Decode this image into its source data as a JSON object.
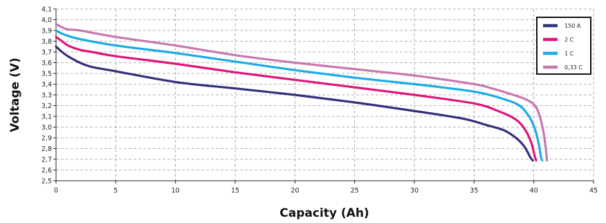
{
  "chart_data": {
    "type": "line",
    "title": "",
    "xlabel": "Capacity (Ah)",
    "ylabel": "Voltage (V)",
    "xlim": [
      0,
      45
    ],
    "ylim": [
      2.5,
      4.1
    ],
    "xticks": [
      0,
      5,
      10,
      15,
      20,
      25,
      30,
      35,
      40,
      45
    ],
    "yticks": [
      2.5,
      2.6,
      2.7,
      2.8,
      2.9,
      3.0,
      3.1,
      3.2,
      3.3,
      3.4,
      3.5,
      3.6,
      3.7,
      3.8,
      3.9,
      4.0,
      4.1
    ],
    "ytick_labels": [
      "2,5",
      "2,6",
      "2,7",
      "2,8",
      "2,9",
      "3,0",
      "3,1",
      "3,2",
      "3,3",
      "3,4",
      "3,5",
      "3,6",
      "3,7",
      "3,8",
      "3,9",
      "4,0",
      "4,1"
    ],
    "grid": true,
    "legend_position": "top-right",
    "series": [
      {
        "name": "150 A",
        "color": "#34307a",
        "points": [
          [
            0,
            3.75
          ],
          [
            0.5,
            3.7
          ],
          [
            1,
            3.66
          ],
          [
            2,
            3.6
          ],
          [
            3,
            3.56
          ],
          [
            5,
            3.52
          ],
          [
            10,
            3.42
          ],
          [
            15,
            3.36
          ],
          [
            20,
            3.3
          ],
          [
            25,
            3.23
          ],
          [
            30,
            3.15
          ],
          [
            34,
            3.08
          ],
          [
            36,
            3.02
          ],
          [
            37.5,
            2.97
          ],
          [
            38.5,
            2.9
          ],
          [
            39.2,
            2.82
          ],
          [
            39.7,
            2.72
          ],
          [
            39.9,
            2.69
          ]
        ]
      },
      {
        "name": "2 C",
        "color": "#e0147a",
        "points": [
          [
            0,
            3.84
          ],
          [
            0.5,
            3.8
          ],
          [
            1,
            3.76
          ],
          [
            2,
            3.72
          ],
          [
            3,
            3.7
          ],
          [
            5,
            3.66
          ],
          [
            10,
            3.59
          ],
          [
            15,
            3.51
          ],
          [
            20,
            3.44
          ],
          [
            25,
            3.37
          ],
          [
            30,
            3.3
          ],
          [
            35,
            3.22
          ],
          [
            37,
            3.15
          ],
          [
            38.5,
            3.07
          ],
          [
            39.3,
            2.97
          ],
          [
            39.8,
            2.85
          ],
          [
            40.1,
            2.72
          ],
          [
            40.2,
            2.69
          ]
        ]
      },
      {
        "name": "1 C",
        "color": "#1aabe6",
        "points": [
          [
            0,
            3.9
          ],
          [
            0.5,
            3.87
          ],
          [
            1,
            3.85
          ],
          [
            2,
            3.82
          ],
          [
            5,
            3.76
          ],
          [
            10,
            3.69
          ],
          [
            15,
            3.61
          ],
          [
            20,
            3.53
          ],
          [
            25,
            3.46
          ],
          [
            30,
            3.4
          ],
          [
            35,
            3.33
          ],
          [
            37.5,
            3.26
          ],
          [
            38.8,
            3.2
          ],
          [
            39.6,
            3.1
          ],
          [
            40.1,
            2.98
          ],
          [
            40.4,
            2.85
          ],
          [
            40.6,
            2.72
          ],
          [
            40.7,
            2.69
          ]
        ]
      },
      {
        "name": "0,33 C",
        "color": "#c678b0",
        "points": [
          [
            0,
            3.96
          ],
          [
            0.5,
            3.93
          ],
          [
            1,
            3.91
          ],
          [
            2,
            3.9
          ],
          [
            5,
            3.84
          ],
          [
            10,
            3.76
          ],
          [
            15,
            3.67
          ],
          [
            20,
            3.6
          ],
          [
            25,
            3.54
          ],
          [
            30,
            3.48
          ],
          [
            35,
            3.4
          ],
          [
            36.5,
            3.36
          ],
          [
            38,
            3.31
          ],
          [
            39.3,
            3.26
          ],
          [
            40.1,
            3.2
          ],
          [
            40.5,
            3.1
          ],
          [
            40.8,
            2.96
          ],
          [
            41,
            2.8
          ],
          [
            41.1,
            2.69
          ]
        ]
      }
    ]
  }
}
